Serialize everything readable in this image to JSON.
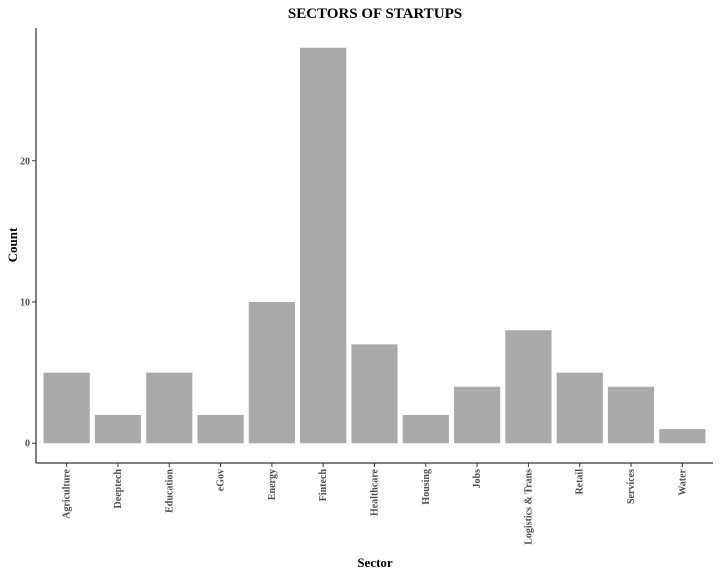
{
  "chart_data": {
    "type": "bar",
    "title": "SECTORS OF STARTUPS",
    "xlabel": "Sector",
    "ylabel": "Count",
    "categories": [
      "Agriculture",
      "Deeptech",
      "Education",
      "eGov",
      "Energy",
      "Fintech",
      "Healthcare",
      "Housing",
      "Jobs",
      "Logistics & Trans",
      "Retail",
      "Services",
      "Water"
    ],
    "values": [
      5,
      2,
      5,
      2,
      10,
      28,
      7,
      2,
      4,
      8,
      5,
      4,
      1
    ],
    "yticks": [
      "0",
      "10",
      "20"
    ],
    "ylim": [
      -1.4,
      29.4
    ],
    "bar_color": "#a9a9a9",
    "grid": false,
    "legend": "none"
  }
}
